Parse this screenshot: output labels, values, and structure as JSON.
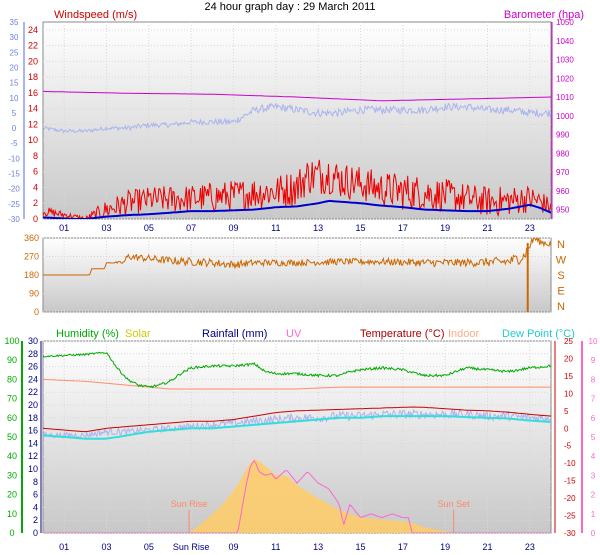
{
  "title": "24 hour graph day : 29 March 2011",
  "chart_data": [
    {
      "type": "line",
      "panel": "wind-barometer",
      "title": "24 hour graph day : 29 March 2011",
      "left_label": "Windspeed (m/s)",
      "right_label": "Barometer (hpa)",
      "x_range": [
        0,
        24
      ],
      "x_ticks": [
        "01",
        "03",
        "05",
        "07",
        "09",
        "11",
        "13",
        "15",
        "17",
        "19",
        "21",
        "23"
      ],
      "wind_axis": {
        "range": [
          0,
          25
        ],
        "ticks": [
          0,
          2,
          4,
          6,
          8,
          10,
          12,
          14,
          16,
          18,
          20,
          22,
          24
        ]
      },
      "temp_axis": {
        "range": [
          -30,
          35
        ],
        "ticks": [
          -30,
          -25,
          -20,
          -15,
          -10,
          -5,
          0,
          5,
          10,
          15,
          20,
          25,
          30,
          35
        ]
      },
      "baro_axis": {
        "range": [
          945,
          1050
        ],
        "ticks": [
          950,
          960,
          970,
          980,
          990,
          1000,
          1010,
          1020,
          1030,
          1040,
          1050
        ]
      },
      "series": [
        {
          "color": "#ee0000",
          "style": "noisy",
          "x": [
            0,
            1.5,
            2,
            3,
            4,
            5,
            6,
            7,
            8,
            9,
            10,
            11,
            12,
            12.5,
            13,
            13.5,
            14,
            15,
            16,
            17,
            18,
            19,
            20,
            21,
            22,
            23,
            23.5,
            24
          ],
          "y": [
            1,
            0.3,
            0,
            1.2,
            2,
            2.5,
            2.5,
            2.6,
            2.8,
            3,
            3.3,
            3.5,
            4,
            5.5,
            5.5,
            5.8,
            5,
            4.5,
            3.8,
            3.5,
            3.3,
            3,
            2.6,
            2.2,
            2.3,
            2.6,
            2.2,
            1.5
          ],
          "amp": [
            0.4,
            0.2,
            0.2,
            0.8,
            1,
            1,
            1.1,
            1.1,
            1.2,
            1.2,
            1.3,
            1.3,
            1.5,
            1.5,
            1.6,
            1.6,
            1.5,
            1.4,
            1.4,
            1.5,
            1.4,
            1.3,
            1.2,
            1.2,
            1.2,
            1.1,
            1,
            0.6
          ]
        },
        {
          "color": "#0000cc",
          "style": "smooth",
          "x": [
            0,
            1.5,
            2,
            3,
            4,
            5,
            6,
            7,
            8,
            9,
            10,
            11,
            12,
            12.5,
            13,
            13.5,
            14,
            15,
            16,
            17,
            18,
            19,
            20,
            21,
            22,
            23,
            23.5,
            24
          ],
          "y": [
            0.2,
            0,
            0,
            0.3,
            0.5,
            0.6,
            0.8,
            1,
            1,
            1.1,
            1.2,
            1.5,
            1.6,
            1.8,
            2,
            2.3,
            2.2,
            2,
            1.7,
            1.5,
            1.2,
            1.1,
            1,
            1,
            1.3,
            1.8,
            1.4,
            0.8
          ],
          "amp": [
            0.1,
            0,
            0,
            0.1,
            0.1,
            0.1,
            0.1,
            0.1,
            0.1,
            0.1,
            0.1,
            0.1,
            0.1,
            0.1,
            0.1,
            0.1,
            0.1,
            0.1,
            0.1,
            0.1,
            0.1,
            0.1,
            0.1,
            0.1,
            0.1,
            0.1,
            0.1,
            0.1
          ]
        },
        {
          "color": "#cc00cc",
          "style": "smooth",
          "axis": "baro",
          "x": [
            0,
            4,
            8,
            12,
            14,
            16,
            20,
            24
          ],
          "y": [
            1013,
            1012,
            1011.5,
            1010,
            1009,
            1008,
            1009,
            1010
          ],
          "amp": [
            0,
            0,
            0,
            0,
            0,
            0,
            0,
            0
          ]
        },
        {
          "color": "#aab4ee",
          "style": "noisy",
          "axis": "temp",
          "x": [
            0,
            1,
            2,
            3,
            4,
            5,
            6,
            7,
            8,
            9,
            10,
            11,
            12,
            13,
            14,
            15,
            16,
            17,
            18,
            19,
            20,
            21,
            22,
            23,
            24
          ],
          "y": [
            0,
            -1,
            -1,
            0,
            0,
            1,
            1,
            2,
            2,
            2,
            6,
            7,
            6,
            5,
            5,
            6,
            6,
            6,
            6,
            7,
            7,
            6,
            6,
            5,
            5
          ],
          "amp": [
            0.4,
            0.4,
            0.4,
            0.4,
            0.5,
            0.5,
            0.5,
            0.5,
            0.6,
            0.7,
            0.8,
            0.8,
            0.8,
            0.8,
            0.8,
            0.8,
            0.8,
            0.8,
            0.8,
            0.8,
            0.8,
            0.8,
            0.8,
            0.8,
            0.8
          ]
        }
      ]
    },
    {
      "type": "line",
      "panel": "wind-direction",
      "x_range": [
        0,
        24
      ],
      "axis": {
        "range": [
          0,
          360
        ],
        "ticks": [
          0,
          90,
          180,
          270,
          360
        ]
      },
      "compass": [
        "N",
        "W",
        "S",
        "E",
        "N"
      ],
      "series": [
        {
          "color": "#cc6600",
          "style": "noisy",
          "x": [
            0,
            2.2,
            2.3,
            2.9,
            3,
            3.8,
            4,
            6,
            8,
            9,
            10,
            12,
            14,
            16,
            18,
            20,
            22,
            22.7,
            23.2,
            23.5,
            24
          ],
          "y": [
            180,
            180,
            210,
            210,
            240,
            240,
            270,
            250,
            240,
            230,
            240,
            240,
            245,
            245,
            240,
            240,
            245,
            270,
            360,
            340,
            330
          ],
          "amp": [
            0,
            0,
            0,
            0,
            0,
            5,
            10,
            12,
            12,
            12,
            10,
            10,
            10,
            10,
            12,
            12,
            15,
            20,
            10,
            10,
            10
          ]
        }
      ]
    },
    {
      "type": "line",
      "panel": "humidity-temperature",
      "labels": {
        "humidity": "Humidity (%)",
        "solar": "Solar",
        "rainfall": "Rainfall (mm)",
        "uv": "UV",
        "temperature": "Temperature (°C)",
        "indoor": "Indoor",
        "dew": "Dew Point (°C)"
      },
      "x_range": [
        0,
        24
      ],
      "x_ticks": [
        "01",
        "03",
        "05",
        "Sun Rise",
        "09",
        "11",
        "13",
        "15",
        "17",
        "19",
        "21",
        "23"
      ],
      "sun_rise_label": "Sun Rise",
      "sun_set_label": "Sun Set",
      "sun_rise_hour": 6.9,
      "sun_set_hour": 19.4,
      "humidity_axis": {
        "range": [
          0,
          100
        ],
        "ticks": [
          0,
          10,
          20,
          30,
          40,
          50,
          60,
          70,
          80,
          90,
          100
        ]
      },
      "rain_axis": {
        "range": [
          0,
          30
        ],
        "ticks": [
          0,
          2,
          4,
          6,
          8,
          10,
          12,
          14,
          16,
          18,
          20,
          22,
          24,
          26,
          28,
          30
        ]
      },
      "temp_axis": {
        "range": [
          -30,
          25
        ],
        "ticks": [
          -30,
          -25,
          -20,
          -15,
          -10,
          -5,
          0,
          5,
          10,
          15,
          20,
          25
        ]
      },
      "uv_axis": {
        "range": [
          0,
          10
        ],
        "ticks": [
          0,
          1,
          2,
          3,
          4,
          5,
          6,
          7,
          8,
          9,
          10
        ]
      },
      "series": [
        {
          "color": "#00aa00",
          "style": "noisy",
          "x": [
            0,
            2,
            3,
            3.5,
            4,
            4.5,
            5,
            5.5,
            6,
            6.5,
            7,
            8,
            9,
            10,
            10.5,
            11,
            12,
            13,
            14,
            14.5,
            15,
            16,
            17,
            18,
            19,
            20,
            21,
            22,
            23,
            24
          ],
          "y": [
            92,
            93,
            94,
            86,
            80,
            77,
            76,
            77,
            79,
            83,
            86,
            87,
            87,
            88,
            84,
            83,
            83,
            82,
            82,
            84,
            85,
            86,
            85,
            82,
            82,
            86,
            85,
            84,
            86,
            87
          ],
          "amp": [
            0.3,
            0.3,
            0.3,
            0.4,
            0.4,
            0.4,
            0.4,
            0.4,
            0.4,
            0.4,
            0.4,
            0.4,
            0.4,
            0.4,
            0.4,
            0.4,
            0.4,
            0.4,
            0.4,
            0.4,
            0.4,
            0.4,
            0.4,
            0.4,
            0.4,
            0.4,
            0.4,
            0.4,
            0.4,
            0.4
          ]
        },
        {
          "color": "#ff8c66",
          "style": "smooth",
          "axis": "humidity",
          "x": [
            0,
            2,
            4,
            6,
            8,
            10,
            12,
            14,
            16,
            18,
            20,
            22,
            24
          ],
          "y": [
            80,
            79,
            77,
            75,
            75,
            75,
            75,
            76,
            76,
            76,
            76,
            76,
            76
          ],
          "amp": [
            0,
            0,
            0,
            0,
            0,
            0,
            0,
            0,
            0,
            0,
            0,
            0,
            0
          ]
        },
        {
          "color": "#cc0000",
          "style": "smooth",
          "axis": "temp",
          "x": [
            0,
            1,
            2,
            3,
            4,
            5,
            6,
            7,
            8,
            9,
            10,
            11,
            12,
            13,
            14,
            15,
            16,
            17,
            17.5,
            18,
            19,
            20,
            21,
            22,
            23,
            24
          ],
          "y": [
            0,
            -0.5,
            -1,
            0,
            0.5,
            1,
            1.5,
            2,
            2,
            2.5,
            3.5,
            4.5,
            5,
            5.2,
            5.4,
            5.6,
            5.8,
            6,
            6.1,
            6,
            5.6,
            5.2,
            5,
            4.6,
            4,
            3.5
          ],
          "amp": [
            0,
            0,
            0,
            0,
            0,
            0,
            0,
            0,
            0,
            0,
            0,
            0,
            0,
            0,
            0,
            0,
            0,
            0,
            0,
            0,
            0,
            0,
            0,
            0,
            0,
            0
          ]
        },
        {
          "color": "#aab4ee",
          "style": "noisy",
          "axis": "temp",
          "x": [
            0,
            1,
            2,
            3,
            4,
            5,
            6,
            7,
            8,
            9,
            10,
            11,
            12,
            13,
            14,
            15,
            16,
            17,
            18,
            19,
            20,
            21,
            22,
            23,
            24
          ],
          "y": [
            -2,
            -2,
            -2,
            -1,
            -1,
            -0.5,
            0,
            0.5,
            1,
            1.5,
            2,
            2.5,
            3,
            3,
            3.5,
            3.5,
            4,
            4,
            4,
            4,
            4,
            3.5,
            3.5,
            3,
            3
          ],
          "amp": [
            0.5,
            0.5,
            0.5,
            0.6,
            0.6,
            0.6,
            0.6,
            0.6,
            0.7,
            0.7,
            0.8,
            0.8,
            0.8,
            0.8,
            0.8,
            0.8,
            0.8,
            0.8,
            0.8,
            0.8,
            0.8,
            0.8,
            0.8,
            0.8,
            0.8
          ]
        },
        {
          "color": "#33dddd",
          "style": "smooth",
          "axis": "temp",
          "x": [
            0,
            1,
            2,
            3,
            4,
            5,
            6,
            7,
            8,
            9,
            10,
            11,
            12,
            13,
            14,
            15,
            16,
            17,
            18,
            19,
            20,
            21,
            22,
            23,
            24
          ],
          "y": [
            -2,
            -2.5,
            -3,
            -3,
            -2,
            -1,
            -0.5,
            0,
            0,
            0.5,
            1,
            1.5,
            2,
            2.5,
            3,
            3,
            3.5,
            3.5,
            3.5,
            3.5,
            3.2,
            3,
            2.8,
            2.2,
            1.8
          ],
          "amp": [
            0,
            0,
            0,
            0,
            0,
            0,
            0,
            0,
            0,
            0,
            0,
            0,
            0,
            0,
            0,
            0,
            0,
            0,
            0,
            0,
            0,
            0,
            0,
            0,
            0
          ]
        }
      ],
      "solar_area": {
        "color": "#ffcc66",
        "x": [
          0,
          6.9,
          7.5,
          8.5,
          9.2,
          9.7,
          10,
          10.5,
          11,
          11.5,
          12,
          13,
          14,
          15,
          16,
          17,
          17.5,
          18,
          19.4,
          24
        ],
        "uv": [
          0,
          0,
          0.5,
          1.5,
          2.5,
          3.5,
          3.9,
          3.5,
          3.0,
          3.0,
          2.5,
          1.8,
          1.2,
          0.8,
          0.7,
          0.6,
          0.5,
          0.3,
          0,
          0
        ]
      },
      "uv_line": {
        "color": "#ff66cc",
        "x": [
          0,
          9.2,
          9.6,
          9.8,
          10,
          10.2,
          10.5,
          10.8,
          11,
          11.2,
          11.5,
          12,
          12.5,
          13,
          13.5,
          14,
          14.2,
          14.5,
          15,
          15.5,
          16,
          16.5,
          17,
          17.3,
          17.4,
          24
        ],
        "uv": [
          0,
          0,
          2.5,
          3.5,
          3.8,
          3.2,
          3.0,
          3.1,
          2.8,
          3.0,
          3.3,
          2.6,
          3.2,
          2.6,
          2.3,
          1.5,
          0.4,
          1.5,
          0.8,
          1.0,
          0.8,
          1.0,
          0.8,
          0.8,
          0,
          0
        ]
      }
    }
  ]
}
